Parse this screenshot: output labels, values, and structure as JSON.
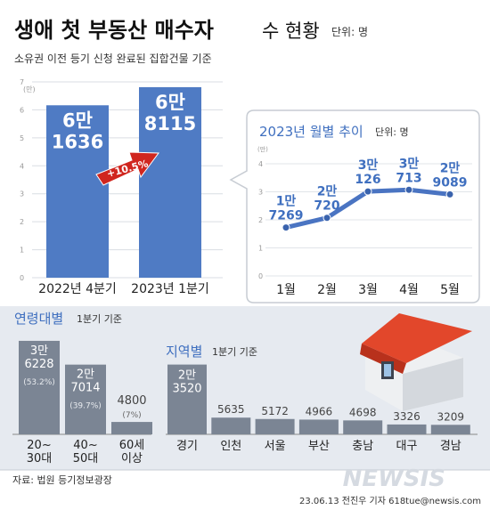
{
  "header": {
    "title": "생애 첫 부동산 매수자",
    "title_suffix": "수 현황",
    "unit": "단위: 명",
    "subtitle": "소유권 이전 등기 신청 완료된 집합건물 기준"
  },
  "colors": {
    "bar_blue": "#4f7bc4",
    "bar_gray": "#7b8594",
    "line_blue": "#4a74c2",
    "arrow_red": "#d0261f",
    "panel_bg": "#e6eaf0"
  },
  "chart_data": [
    {
      "id": "quarterly",
      "type": "bar",
      "categories": [
        "2022년 4분기",
        "2023년 1분기"
      ],
      "values": [
        61636,
        68115
      ],
      "value_labels": [
        [
          "6만",
          "1636"
        ],
        [
          "6만",
          "8115"
        ]
      ],
      "y_ticks": [
        "0",
        "1",
        "2",
        "3",
        "4",
        "5",
        "6",
        "7"
      ],
      "y_unit": "(만)",
      "ylim": [
        0,
        70000
      ],
      "annotation": "+10.5%"
    },
    {
      "id": "monthly",
      "type": "line",
      "title": "2023년 월별 추이",
      "unit": "단위: 명",
      "categories": [
        "1월",
        "2월",
        "3월",
        "4월",
        "5월"
      ],
      "values": [
        17269,
        20720,
        30126,
        30713,
        29089
      ],
      "value_labels": [
        [
          "1만",
          "7269"
        ],
        [
          "2만",
          "720"
        ],
        [
          "3만",
          "126"
        ],
        [
          "3만",
          "713"
        ],
        [
          "2만",
          "9089"
        ]
      ],
      "y_ticks": [
        "0",
        "1",
        "2",
        "3",
        "4"
      ],
      "y_unit": "(만)",
      "ylim": [
        0,
        40000
      ]
    },
    {
      "id": "age",
      "type": "bar",
      "title": "연령대별",
      "basis": "1분기 기준",
      "categories": [
        [
          "20~",
          "30대"
        ],
        [
          "40~",
          "50대"
        ],
        [
          "60세",
          "이상"
        ]
      ],
      "values": [
        36228,
        27014,
        4800
      ],
      "value_labels": [
        [
          "3만",
          "6228"
        ],
        [
          "2만",
          "7014"
        ],
        [
          "4800"
        ]
      ],
      "percent_labels": [
        "(53.2%)",
        "(39.7%)",
        "(7%)"
      ],
      "ylim": [
        0,
        40000
      ]
    },
    {
      "id": "region",
      "type": "bar",
      "title": "지역별",
      "basis": "1분기 기준",
      "categories": [
        "경기",
        "인천",
        "서울",
        "부산",
        "충남",
        "대구",
        "경남"
      ],
      "values": [
        23520,
        5635,
        5172,
        4966,
        4698,
        3326,
        3209
      ],
      "value_labels": [
        [
          "2만",
          "3520"
        ],
        [
          "5635"
        ],
        [
          "5172"
        ],
        [
          "4966"
        ],
        [
          "4698"
        ],
        [
          "3326"
        ],
        [
          "3209"
        ]
      ],
      "ylim": [
        0,
        24000
      ]
    }
  ],
  "footer": {
    "source": "자료: 법원 등기정보광장",
    "credit": "23.06.13 전진우 기자 618tue@newsis.com",
    "logo": "NEWSIS"
  }
}
